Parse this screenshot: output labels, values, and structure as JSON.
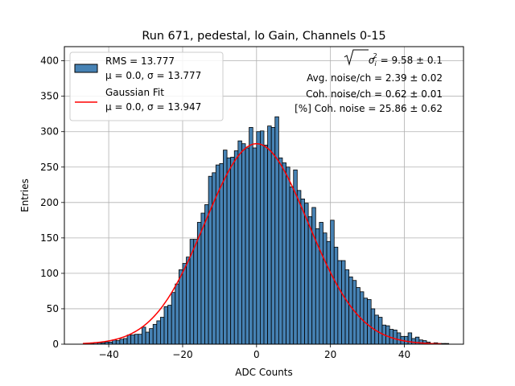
{
  "chart_data": {
    "type": "bar",
    "title": "Run 671, pedestal, lo Gain, Channels 0-15",
    "xlabel": "ADC Counts",
    "ylabel": "Entries",
    "xlim": [
      -52,
      56
    ],
    "ylim": [
      0,
      420
    ],
    "x_ticks": [
      -40,
      -20,
      0,
      20,
      40
    ],
    "y_ticks": [
      0,
      50,
      100,
      150,
      200,
      250,
      300,
      350,
      400
    ],
    "grid": true,
    "legend_position": "top-left",
    "bin_width": 1,
    "bin_start": -47,
    "values": [
      0,
      0,
      1,
      2,
      2,
      2,
      3,
      3,
      6,
      5,
      7,
      8,
      13,
      13,
      14,
      14,
      24,
      17,
      22,
      28,
      33,
      38,
      53,
      55,
      73,
      85,
      105,
      114,
      123,
      148,
      148,
      172,
      185,
      197,
      237,
      242,
      253,
      255,
      274,
      263,
      264,
      273,
      287,
      283,
      277,
      306,
      277,
      300,
      301,
      281,
      308,
      306,
      321,
      263,
      256,
      250,
      222,
      246,
      217,
      205,
      199,
      180,
      193,
      163,
      172,
      157,
      145,
      175,
      137,
      118,
      118,
      105,
      95,
      90,
      80,
      74,
      65,
      63,
      50,
      41,
      38,
      27,
      26,
      21,
      20,
      16,
      11,
      11,
      16,
      8,
      10,
      6,
      5,
      3,
      1,
      2,
      1,
      1,
      1,
      0
    ],
    "series": [
      {
        "name": "RMS = 13.777",
        "name_line2": "μ = 0.0, σ = 13.777",
        "kind": "histogram",
        "color": "#4682b4",
        "edge_color": "#000000"
      },
      {
        "name": "Gaussian Fit",
        "name_line2": "μ = 0.0, σ = 13.947",
        "kind": "line",
        "color": "#ff0000",
        "mu": 0.0,
        "sigma": 13.947,
        "amplitude": 283,
        "x_range": [
          -47,
          50
        ]
      }
    ],
    "annotations": [
      {
        "text": "√σ_i² = 9.58 ± 0.1",
        "radical": "σ",
        "sub": "i",
        "sup": "2",
        "rest": " = 9.58 ± 0.1"
      },
      {
        "text": "Avg. noise/ch = 2.39 ± 0.02"
      },
      {
        "text": "Coh. noise/ch = 0.62 ± 0.01"
      },
      {
        "text": "[%] Coh. noise = 25.86 ± 0.62"
      }
    ]
  }
}
